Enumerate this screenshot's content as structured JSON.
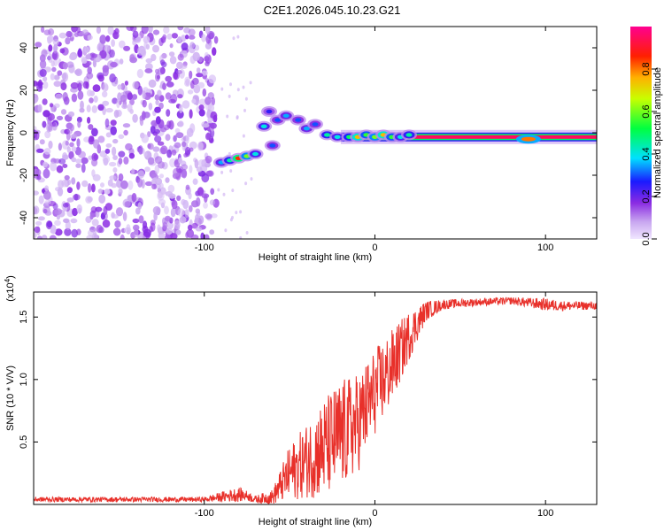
{
  "title": "C2E1.2026.045.10.23.G21",
  "colors": {
    "snr_line": "#e8302a",
    "frame": "#000000",
    "spec_low": "#8a2be2"
  },
  "chart_data": [
    {
      "type": "heatmap",
      "name": "spectrogram",
      "xlabel": "Height of straight line (km)",
      "ylabel": "Frequency (Hz)",
      "xlim": [
        -200,
        130
      ],
      "ylim": [
        -50,
        50
      ],
      "xticks": [
        -100,
        0,
        100
      ],
      "xtick_labels": [
        "-100",
        "0",
        "100"
      ],
      "yticks": [
        -40,
        -20,
        0,
        20,
        40
      ],
      "ytick_labels": [
        "-40",
        "-20",
        "0",
        "20",
        "40"
      ],
      "noise_region_x": [
        -200,
        -93
      ],
      "features": [
        {
          "x": -90,
          "y": -14,
          "v": 0.35
        },
        {
          "x": -85,
          "y": -13,
          "v": 0.45
        },
        {
          "x": -80,
          "y": -12,
          "v": 0.85
        },
        {
          "x": -75,
          "y": -11,
          "v": 0.6
        },
        {
          "x": -70,
          "y": -10,
          "v": 0.4
        },
        {
          "x": -62,
          "y": 10,
          "v": 0.25
        },
        {
          "x": -57,
          "y": 6,
          "v": 0.3
        },
        {
          "x": -52,
          "y": 8,
          "v": 0.35
        },
        {
          "x": -45,
          "y": 6,
          "v": 0.3
        },
        {
          "x": -60,
          "y": -6,
          "v": 0.3
        },
        {
          "x": -40,
          "y": 2,
          "v": 0.35
        },
        {
          "x": -65,
          "y": 3,
          "v": 0.4
        },
        {
          "x": -35,
          "y": 4,
          "v": 0.3
        },
        {
          "x": -28,
          "y": -1,
          "v": 0.45
        },
        {
          "x": -22,
          "y": -2,
          "v": 0.4
        },
        {
          "x": -15,
          "y": -2,
          "v": 0.5
        },
        {
          "x": -10,
          "y": -2,
          "v": 0.75
        },
        {
          "x": -5,
          "y": -1,
          "v": 0.55
        },
        {
          "x": 0,
          "y": -2,
          "v": 0.6
        },
        {
          "x": 5,
          "y": -1,
          "v": 0.75
        },
        {
          "x": 10,
          "y": -2,
          "v": 0.55
        },
        {
          "x": 15,
          "y": -2,
          "v": 0.4
        },
        {
          "x": 20,
          "y": -1,
          "v": 0.45
        }
      ],
      "carrier": {
        "x_start": -20,
        "x_end": 130,
        "y": -2,
        "v": 0.95
      },
      "carrier_hotspot": {
        "x": 90,
        "y": -3,
        "v": 0.8
      },
      "colorbar": {
        "label": "Normalized spectral amplitude",
        "range": [
          0,
          1
        ],
        "ticks": [
          0.0,
          0.2,
          0.4,
          0.6,
          0.8
        ],
        "tick_labels": [
          "0.0",
          "0.2",
          "0.4",
          "0.6",
          "0.8"
        ]
      }
    },
    {
      "type": "line",
      "name": "snr",
      "xlabel": "Height of straight line (km)",
      "ylabel": "SNR (10 * V/V)",
      "y_scale_label": "(x10",
      "y_scale_exp": "4",
      "y_scale_close": ")",
      "xlim": [
        -200,
        130
      ],
      "ylim": [
        0,
        17000
      ],
      "xticks": [
        -100,
        0,
        100
      ],
      "xtick_labels": [
        "-100",
        "0",
        "100"
      ],
      "yticks": [
        5000,
        10000,
        15000
      ],
      "ytick_labels": [
        "0.5",
        "1.0",
        "1.5"
      ],
      "envelope": {
        "x": [
          -200,
          -100,
          -80,
          -75,
          -70,
          -60,
          -50,
          -40,
          -30,
          -20,
          -10,
          0,
          10,
          20,
          30,
          40,
          60,
          80,
          100,
          110,
          130
        ],
        "mean": [
          400,
          400,
          800,
          700,
          400,
          600,
          2500,
          3500,
          4500,
          5500,
          6500,
          9000,
          11000,
          13500,
          15500,
          16000,
          16200,
          16300,
          16000,
          15900,
          15900
        ],
        "spread": [
          200,
          200,
          600,
          400,
          300,
          600,
          2200,
          3000,
          4000,
          4500,
          4000,
          3500,
          3000,
          2000,
          800,
          400,
          300,
          300,
          500,
          400,
          300
        ]
      }
    }
  ]
}
